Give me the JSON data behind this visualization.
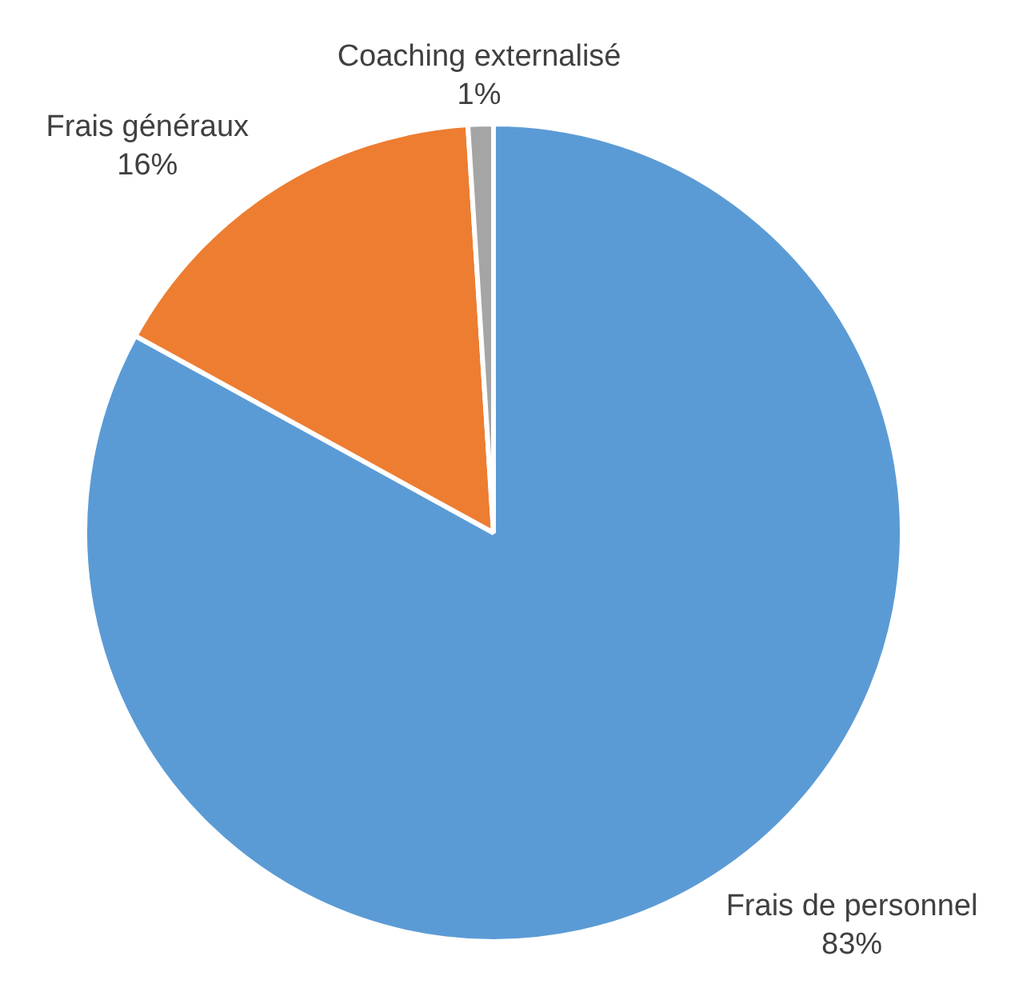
{
  "chart_data": {
    "type": "pie",
    "categories": [
      "Frais de personnel",
      "Frais généraux",
      "Coaching externalisé"
    ],
    "values": [
      83,
      16,
      1
    ],
    "value_labels": [
      "83%",
      "16%",
      "1%"
    ],
    "colors": [
      "#5b9bd5",
      "#ed7d31",
      "#a5a5a5"
    ],
    "legend": false
  }
}
